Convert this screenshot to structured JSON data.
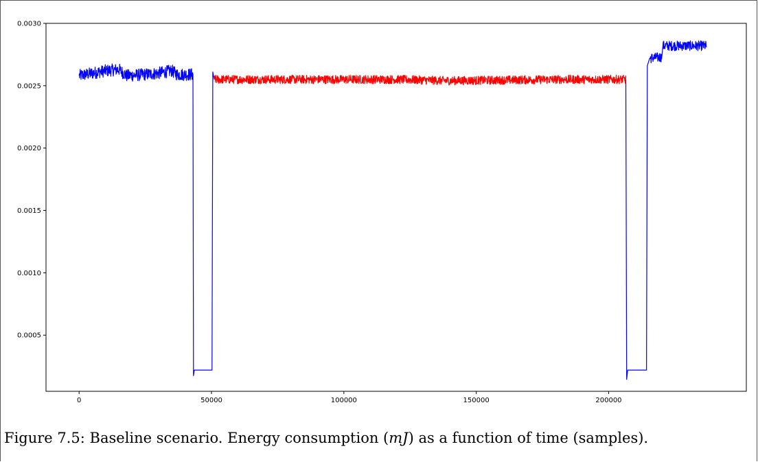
{
  "figure": {
    "caption_prefix": "Figure 7.5: Baseline scenario. Energy consumption (",
    "caption_unit": "mJ",
    "caption_suffix": ") as a function of time (samples)."
  },
  "chart_data": {
    "type": "line",
    "title": "",
    "xlabel": "",
    "ylabel": "",
    "xlim": [
      -12500,
      252000
    ],
    "ylim": [
      5e-05,
      0.003
    ],
    "grid": false,
    "xticks": [
      0,
      50000,
      100000,
      150000,
      200000
    ],
    "xtick_labels": [
      "0",
      "50000",
      "100000",
      "150000",
      "200000"
    ],
    "yticks": [
      0.0005,
      0.001,
      0.0015,
      0.002,
      0.0025,
      0.003
    ],
    "ytick_labels": [
      "0.0005",
      "0.0010",
      "0.0015",
      "0.0020",
      "0.0025",
      "0.0030"
    ],
    "colors": {
      "baseline": "#0000ff",
      "highlight": "#ff0000"
    },
    "series": [
      {
        "color": "#0000ff",
        "segments": [
          {
            "points": [
              [
                0,
                0.00258
              ],
              [
                5000,
                0.0026
              ],
              [
                10000,
                0.00262
              ],
              [
                15000,
                0.00263
              ],
              [
                18000,
                0.00258
              ],
              [
                25000,
                0.00259
              ],
              [
                30000,
                0.0026
              ],
              [
                35000,
                0.00262
              ],
              [
                37000,
                0.00259
              ],
              [
                43000,
                0.00259
              ],
              [
                43200,
                0.000175
              ],
              [
                43500,
                0.00022
              ],
              [
                50200,
                0.00022
              ],
              [
                50500,
                0.00261
              ],
              [
                51000,
                0.00255
              ]
            ],
            "noise": 5e-05
          },
          {
            "points": [
              [
                206500,
                0.00255
              ],
              [
                206800,
                0.000145
              ],
              [
                207200,
                0.00022
              ],
              [
                214300,
                0.00022
              ],
              [
                214600,
                0.00266
              ],
              [
                215500,
                0.00272
              ],
              [
                220000,
                0.00273
              ],
              [
                220500,
                0.00282
              ],
              [
                237000,
                0.00282
              ]
            ],
            "noise": 4e-05
          }
        ]
      },
      {
        "color": "#ff0000",
        "segments": [
          {
            "points": [
              [
                51000,
                0.00255
              ],
              [
                80000,
                0.00255
              ],
              [
                120000,
                0.00255
              ],
              [
                140000,
                0.00254
              ],
              [
                180000,
                0.00255
              ],
              [
                206500,
                0.00255
              ]
            ],
            "noise": 3.5e-05
          }
        ]
      }
    ]
  }
}
